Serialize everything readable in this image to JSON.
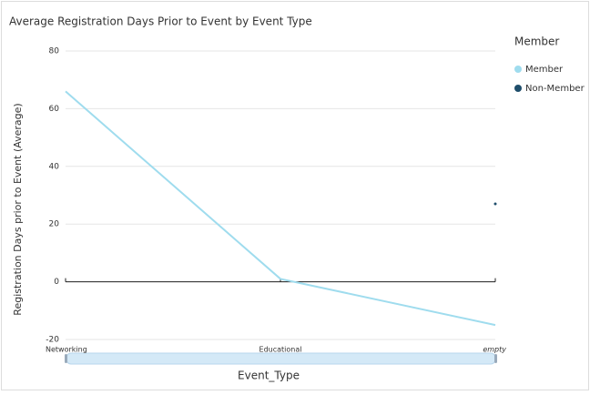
{
  "chart_data": {
    "type": "line",
    "title": "Average Registration Days Prior to Event by Event Type",
    "x_label": "Event_Type",
    "y_label": "Registration Days prior to Event (Average)",
    "legend_title": "Member",
    "categories": [
      "Networking",
      "Educational",
      "empty"
    ],
    "series": [
      {
        "name": "Member",
        "color": "#9fdcee",
        "values": [
          66,
          1,
          -15
        ]
      },
      {
        "name": "Non-Member",
        "color": "#1f4e6b",
        "values": [
          null,
          null,
          27
        ]
      }
    ],
    "ylim": [
      -20,
      80
    ],
    "yticks": [
      -20,
      0,
      20,
      40,
      60,
      80
    ],
    "grid": true
  }
}
